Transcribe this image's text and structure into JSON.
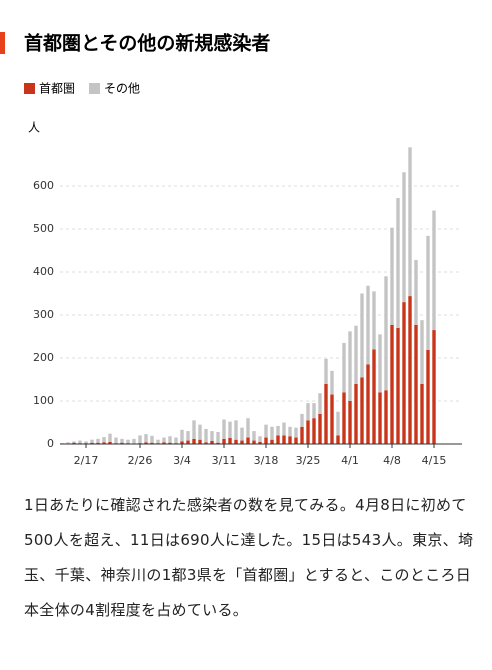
{
  "chart_data": {
    "type": "stacked_bar",
    "title": "首都圏とその他の新規感染者",
    "y_label": "人",
    "legend": "top-left",
    "grid": true,
    "categories": [
      null,
      null,
      null,
      null,
      "2/17",
      null,
      null,
      null,
      null,
      null,
      null,
      null,
      null,
      "2/26",
      null,
      null,
      null,
      null,
      null,
      null,
      "3/4",
      null,
      null,
      null,
      null,
      null,
      null,
      "3/11",
      null,
      null,
      null,
      null,
      null,
      null,
      "3/18",
      null,
      null,
      null,
      null,
      null,
      null,
      "3/25",
      null,
      null,
      null,
      null,
      null,
      null,
      "4/1",
      null,
      null,
      null,
      null,
      null,
      null,
      "4/8",
      null,
      null,
      null,
      null,
      null,
      null,
      "4/15"
    ],
    "series": [
      {
        "name": "首都圏",
        "color": "#c8351a",
        "values": [
          1,
          1,
          3,
          2,
          2,
          3,
          3,
          4,
          5,
          2,
          3,
          2,
          1,
          2,
          4,
          3,
          2,
          4,
          3,
          2,
          6,
          8,
          12,
          10,
          4,
          7,
          3,
          12,
          14,
          10,
          8,
          15,
          8,
          5,
          15,
          10,
          20,
          20,
          18,
          15,
          40,
          55,
          60,
          70,
          140,
          115,
          20,
          120,
          100,
          140,
          155,
          185,
          220,
          120,
          125,
          277,
          270,
          330,
          344,
          277,
          140,
          219,
          265
        ]
      },
      {
        "name": "その他",
        "color": "#c4c4c4",
        "values": [
          1,
          3,
          3,
          6,
          4,
          7,
          9,
          12,
          19,
          13,
          9,
          8,
          11,
          18,
          19,
          16,
          8,
          11,
          15,
          13,
          27,
          22,
          43,
          35,
          31,
          23,
          25,
          45,
          38,
          45,
          30,
          45,
          22,
          13,
          30,
          30,
          22,
          30,
          22,
          23,
          30,
          40,
          35,
          48,
          58,
          55,
          55,
          115,
          162,
          135,
          195,
          183,
          135,
          135,
          265,
          226,
          302,
          302,
          346,
          151,
          148,
          265,
          278
        ]
      }
    ],
    "ylim": [
      0,
      700
    ],
    "yticks": [
      0,
      100,
      200,
      300,
      400,
      500,
      600
    ]
  },
  "paragraph": "1日あたりに確認された感染者の数を見てみる。4月8日に初めて500人を超え、11日は690人に達した。15日は543人。東京、埼玉、千葉、神奈川の1都3県を「首都圏」とすると、このところ日本全体の4割程度を占めている。"
}
